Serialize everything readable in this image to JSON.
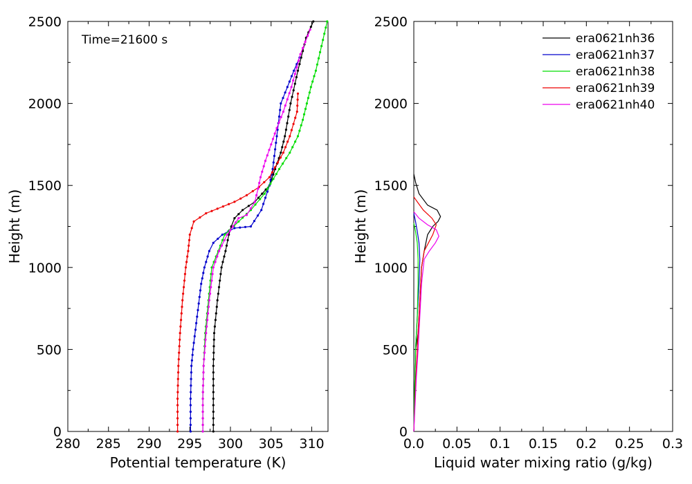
{
  "chart_data": [
    {
      "type": "line",
      "annotation": "Time=21600 s",
      "xlabel": "Potential temperature (K)",
      "ylabel": "Height (m)",
      "xlim": [
        280,
        312
      ],
      "ylim": [
        0,
        2500
      ],
      "xticks": [
        280,
        285,
        290,
        295,
        300,
        305,
        310
      ],
      "yticks": [
        0,
        500,
        1000,
        1500,
        2000,
        2500
      ],
      "markers": true,
      "grid": false,
      "series": [
        {
          "name": "era0621nh36",
          "color": "#000000",
          "x": [
            297.9,
            297.9,
            297.9,
            298.0,
            298.4,
            298.9,
            299.4,
            299.8,
            300.1,
            300.5,
            301.5,
            303.0,
            304.8,
            305.5,
            306.2,
            306.7,
            307.4,
            308.3,
            309.3,
            310.2
          ],
          "y": [
            0,
            200,
            400,
            600,
            800,
            1000,
            1100,
            1200,
            1250,
            1300,
            1350,
            1400,
            1500,
            1600,
            1700,
            1800,
            2000,
            2200,
            2400,
            2500
          ]
        },
        {
          "name": "era0621nh37",
          "color": "#0000cc",
          "x": [
            295.1,
            295.1,
            295.2,
            295.4,
            295.9,
            296.4,
            296.8,
            297.4,
            297.9,
            299.0,
            300.5,
            302.5,
            303.8,
            304.8,
            305.2,
            305.7,
            306.2,
            307.0,
            307.8,
            308.5
          ],
          "y": [
            0,
            200,
            400,
            500,
            700,
            900,
            1000,
            1100,
            1150,
            1200,
            1240,
            1250,
            1350,
            1500,
            1600,
            1800,
            2000,
            2100,
            2200,
            2280
          ]
        },
        {
          "name": "era0621nh38",
          "color": "#00dd00",
          "x": [
            296.6,
            296.6,
            296.7,
            296.9,
            297.3,
            297.7,
            298.5,
            299.3,
            301.0,
            302.5,
            304.2,
            306.0,
            307.3,
            308.3,
            308.9,
            309.4,
            309.9,
            310.5,
            311.2,
            311.9
          ],
          "y": [
            0,
            200,
            400,
            600,
            800,
            1000,
            1100,
            1200,
            1280,
            1350,
            1450,
            1600,
            1700,
            1800,
            1900,
            2000,
            2100,
            2200,
            2350,
            2500
          ]
        },
        {
          "name": "era0621nh39",
          "color": "#ee0000",
          "x": [
            293.5,
            293.5,
            293.6,
            293.8,
            294.1,
            294.5,
            294.8,
            295.0,
            295.5,
            297.0,
            300.5,
            302.0,
            303.5,
            304.8,
            306.5,
            307.3,
            308.2,
            308.3
          ],
          "y": [
            0,
            200,
            400,
            600,
            800,
            1000,
            1100,
            1200,
            1280,
            1330,
            1400,
            1440,
            1490,
            1550,
            1700,
            1800,
            1950,
            2060
          ]
        },
        {
          "name": "era0621nh40",
          "color": "#ee00ee",
          "x": [
            296.6,
            296.6,
            296.7,
            297.0,
            297.4,
            297.9,
            298.6,
            299.6,
            300.3,
            301.0,
            302.0,
            303.0,
            303.4,
            303.7,
            304.3,
            305.0,
            305.7,
            306.5,
            307.5,
            308.6,
            309.8
          ],
          "y": [
            0,
            200,
            400,
            600,
            800,
            1000,
            1100,
            1200,
            1250,
            1300,
            1320,
            1400,
            1480,
            1550,
            1650,
            1750,
            1850,
            1950,
            2100,
            2300,
            2450
          ]
        }
      ]
    },
    {
      "type": "line",
      "xlabel": "Liquid water mixing ratio (g/kg)",
      "ylabel": "Height (m)",
      "xlim": [
        0,
        0.3
      ],
      "ylim": [
        0,
        2500
      ],
      "xticks": [
        0.0,
        0.05,
        0.1,
        0.15,
        0.2,
        0.25,
        0.3
      ],
      "xtick_labels": [
        "0.0",
        "0.05",
        "0.1",
        "0.15",
        "0.2",
        "0.25",
        "0.3"
      ],
      "yticks": [
        0,
        500,
        1000,
        1500,
        2000,
        2500
      ],
      "legend": "top-right",
      "markers": false,
      "grid": false,
      "series": [
        {
          "name": "era0621nh36",
          "color": "#000000",
          "x": [
            0,
            0.002,
            0.005,
            0.006,
            0.007,
            0.008,
            0.009,
            0.012,
            0.016,
            0.022,
            0.028,
            0.031,
            0.027,
            0.016,
            0.006,
            0.002,
            0
          ],
          "y": [
            0,
            500,
            600,
            700,
            800,
            900,
            1000,
            1100,
            1200,
            1250,
            1280,
            1310,
            1350,
            1380,
            1450,
            1520,
            1570
          ]
        },
        {
          "name": "era0621nh37",
          "color": "#0000cc",
          "x": [
            0,
            0.002,
            0.004,
            0.006,
            0.007,
            0.006,
            0.004,
            0.002,
            0
          ],
          "y": [
            0,
            500,
            700,
            900,
            1050,
            1150,
            1220,
            1280,
            1330
          ]
        },
        {
          "name": "era0621nh38",
          "color": "#00dd00",
          "x": [
            0,
            0.002,
            0.004,
            0.005,
            0.005,
            0.004,
            0.002,
            0
          ],
          "y": [
            0,
            500,
            700,
            900,
            1050,
            1150,
            1220,
            1270
          ]
        },
        {
          "name": "era0621nh39",
          "color": "#ee0000",
          "x": [
            0,
            0.003,
            0.005,
            0.007,
            0.009,
            0.012,
            0.017,
            0.022,
            0.026,
            0.021,
            0.011,
            0.004,
            0
          ],
          "y": [
            0,
            400,
            600,
            800,
            1000,
            1100,
            1150,
            1200,
            1260,
            1300,
            1350,
            1400,
            1430
          ]
        },
        {
          "name": "era0621nh40",
          "color": "#ee00ee",
          "x": [
            0,
            0.003,
            0.005,
            0.007,
            0.009,
            0.012,
            0.018,
            0.025,
            0.029,
            0.026,
            0.016,
            0.006,
            0
          ],
          "y": [
            0,
            330,
            500,
            700,
            900,
            1050,
            1100,
            1150,
            1190,
            1230,
            1260,
            1300,
            1340
          ]
        }
      ]
    }
  ]
}
